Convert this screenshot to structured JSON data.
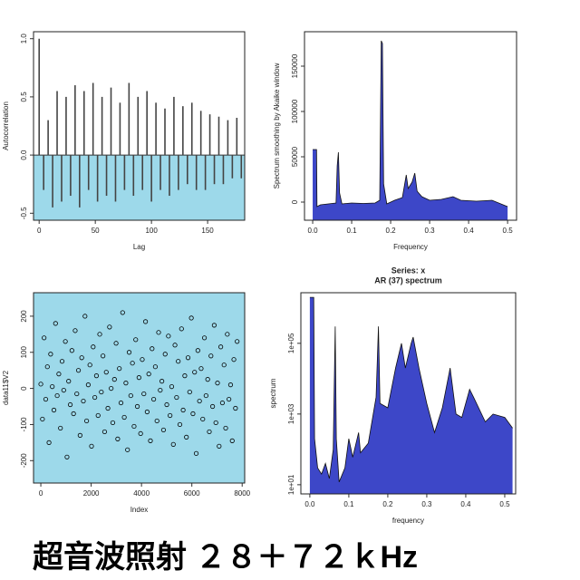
{
  "chart_data": [
    {
      "type": "bar",
      "x_label": "Lag",
      "y_label": "Autocorrelation",
      "color": "#444444",
      "below_zero_color": "#9dd9ea",
      "x": [
        0,
        4,
        8,
        12,
        16,
        20,
        24,
        28,
        32,
        36,
        40,
        44,
        48,
        52,
        56,
        60,
        64,
        68,
        72,
        76,
        80,
        84,
        88,
        92,
        96,
        100,
        104,
        108,
        112,
        116,
        120,
        124,
        128,
        132,
        136,
        140,
        144,
        148,
        152,
        156,
        160,
        164,
        168,
        172,
        176,
        180
      ],
      "values": [
        1.0,
        -0.3,
        0.3,
        -0.45,
        0.55,
        -0.4,
        0.5,
        -0.35,
        0.6,
        -0.45,
        0.55,
        -0.3,
        0.62,
        -0.4,
        0.5,
        -0.35,
        0.58,
        -0.4,
        0.45,
        -0.3,
        0.62,
        -0.35,
        0.5,
        -0.3,
        0.55,
        -0.4,
        0.45,
        -0.3,
        0.4,
        -0.35,
        0.5,
        -0.3,
        0.42,
        -0.25,
        0.45,
        -0.3,
        0.38,
        -0.3,
        0.35,
        -0.25,
        0.33,
        -0.25,
        0.3,
        -0.2,
        0.32,
        -0.2
      ],
      "xlim": [
        -5,
        183
      ],
      "xticks": [
        0,
        50,
        100,
        150
      ],
      "ylim": [
        -0.56,
        1.06
      ],
      "yticks": [
        -0.5,
        {
          "value": 0,
          "label": "0.0"
        },
        0.5,
        {
          "value": 1,
          "label": "1.0"
        }
      ]
    },
    {
      "type": "area",
      "x_label": "Frequency",
      "y_label": "Spectrum smoothing by  Akaike window",
      "color": "#3d47c8",
      "x": [
        0,
        0.01,
        0.011,
        0.02,
        0.04,
        0.06,
        0.063,
        0.066,
        0.069,
        0.075,
        0.1,
        0.13,
        0.16,
        0.172,
        0.176,
        0.179,
        0.182,
        0.19,
        0.21,
        0.23,
        0.24,
        0.245,
        0.255,
        0.262,
        0.268,
        0.28,
        0.3,
        0.33,
        0.36,
        0.38,
        0.42,
        0.46,
        0.5
      ],
      "values": [
        58000,
        58000,
        -5000,
        -3000,
        -2000,
        -1000,
        40000,
        55000,
        10000,
        -2000,
        -1000,
        -1500,
        -1000,
        2000,
        178000,
        175000,
        20000,
        -2000,
        2000,
        5000,
        30000,
        15000,
        22000,
        32000,
        12000,
        6000,
        2000,
        3000,
        6000,
        2000,
        1000,
        2000,
        -5000
      ],
      "xlim": [
        -0.021,
        0.523
      ],
      "xticks": [
        {
          "value": 0,
          "label": "0.0"
        },
        0.1,
        0.2,
        0.3,
        0.4,
        0.5
      ],
      "ylim": [
        -20000,
        188000
      ],
      "yticks": [
        0,
        50000,
        100000,
        150000
      ]
    },
    {
      "type": "scatter",
      "x_label": "Index",
      "y_label": "data11$V2",
      "color": "#000000",
      "background": "#9dd9ea",
      "x": [
        0,
        65,
        130,
        195,
        260,
        325,
        390,
        455,
        520,
        585,
        650,
        715,
        780,
        845,
        910,
        975,
        1040,
        1105,
        1170,
        1235,
        1300,
        1365,
        1430,
        1495,
        1560,
        1625,
        1690,
        1755,
        1820,
        1885,
        1950,
        2015,
        2080,
        2145,
        2210,
        2275,
        2340,
        2405,
        2470,
        2535,
        2600,
        2665,
        2730,
        2795,
        2860,
        2925,
        2990,
        3055,
        3120,
        3185,
        3250,
        3315,
        3380,
        3445,
        3510,
        3575,
        3640,
        3705,
        3770,
        3835,
        3900,
        3965,
        4030,
        4095,
        4160,
        4225,
        4290,
        4355,
        4420,
        4485,
        4550,
        4615,
        4680,
        4745,
        4810,
        4875,
        4940,
        5005,
        5070,
        5135,
        5200,
        5265,
        5330,
        5395,
        5460,
        5525,
        5590,
        5655,
        5720,
        5785,
        5850,
        5915,
        5980,
        6045,
        6110,
        6175,
        6240,
        6305,
        6370,
        6435,
        6500,
        6565,
        6630,
        6695,
        6760,
        6825,
        6890,
        6955,
        7020,
        7085,
        7150,
        7215,
        7280,
        7345,
        7410,
        7475,
        7540,
        7605,
        7670,
        7735,
        7800
      ],
      "values": [
        12,
        -85,
        140,
        -30,
        60,
        -150,
        95,
        5,
        -60,
        180,
        -20,
        40,
        -110,
        75,
        -5,
        130,
        -190,
        20,
        -45,
        105,
        -70,
        160,
        -15,
        50,
        -130,
        85,
        -35,
        200,
        -90,
        10,
        65,
        -160,
        115,
        -25,
        35,
        -75,
        150,
        -10,
        90,
        -120,
        45,
        -55,
        170,
        0,
        -95,
        25,
        125,
        -140,
        55,
        -40,
        210,
        -80,
        15,
        -170,
        100,
        -20,
        70,
        -105,
        135,
        -50,
        30,
        -125,
        80,
        -15,
        185,
        -65,
        40,
        -145,
        110,
        -30,
        60,
        -90,
        155,
        -5,
        20,
        -115,
        95,
        -45,
        145,
        -75,
        5,
        -155,
        120,
        -25,
        75,
        -100,
        165,
        -60,
        35,
        -135,
        85,
        -10,
        195,
        -70,
        45,
        -180,
        105,
        -35,
        55,
        -85,
        140,
        -20,
        25,
        -120,
        90,
        -50,
        175,
        -95,
        15,
        -160,
        115,
        -40,
        65,
        -110,
        150,
        -30,
        10,
        -145,
        80,
        -55,
        130
      ],
      "xlim": [
        -290,
        8100
      ],
      "xticks": [
        0,
        2000,
        4000,
        6000,
        8000
      ],
      "ylim": [
        -262,
        265
      ],
      "yticks": [
        -200,
        -100,
        0,
        100,
        200
      ]
    },
    {
      "type": "area",
      "title": "Series: x",
      "subtitle": "AR (37) spectrum",
      "x_label": "frequency",
      "y_label": "spectrum",
      "color": "#3d47c8",
      "log_y": true,
      "x": [
        0,
        0.01,
        0.012,
        0.02,
        0.03,
        0.04,
        0.05,
        0.06,
        0.065,
        0.068,
        0.075,
        0.09,
        0.1,
        0.11,
        0.125,
        0.13,
        0.15,
        0.17,
        0.176,
        0.18,
        0.2,
        0.22,
        0.235,
        0.245,
        0.26,
        0.265,
        0.28,
        0.3,
        0.32,
        0.34,
        0.36,
        0.375,
        0.39,
        0.41,
        0.42,
        0.45,
        0.47,
        0.5,
        0.52
      ],
      "values": [
        2000000,
        2000000,
        200,
        30,
        20,
        40,
        15,
        100,
        300000,
        200,
        12,
        30,
        200,
        60,
        300,
        80,
        150,
        3000,
        300000,
        2000,
        1500,
        20000,
        100000,
        20000,
        100000,
        150000,
        20000,
        2000,
        300,
        1500,
        20000,
        1000,
        800,
        5000,
        3000,
        600,
        1000,
        800,
        400
      ],
      "xlim": [
        -0.023,
        0.528
      ],
      "xticks": [
        {
          "value": 0,
          "label": "0.0"
        },
        0.1,
        0.2,
        0.3,
        0.4,
        0.5
      ],
      "ylim": [
        5.5,
        2700000
      ],
      "yticks": [
        {
          "value": 10,
          "label": "1e+01"
        },
        {
          "value": 1000,
          "label": "1e+03"
        },
        {
          "value": 100000,
          "label": "1e+05"
        }
      ]
    }
  ],
  "caption": "超音波照射 ２８＋７２ｋHz"
}
